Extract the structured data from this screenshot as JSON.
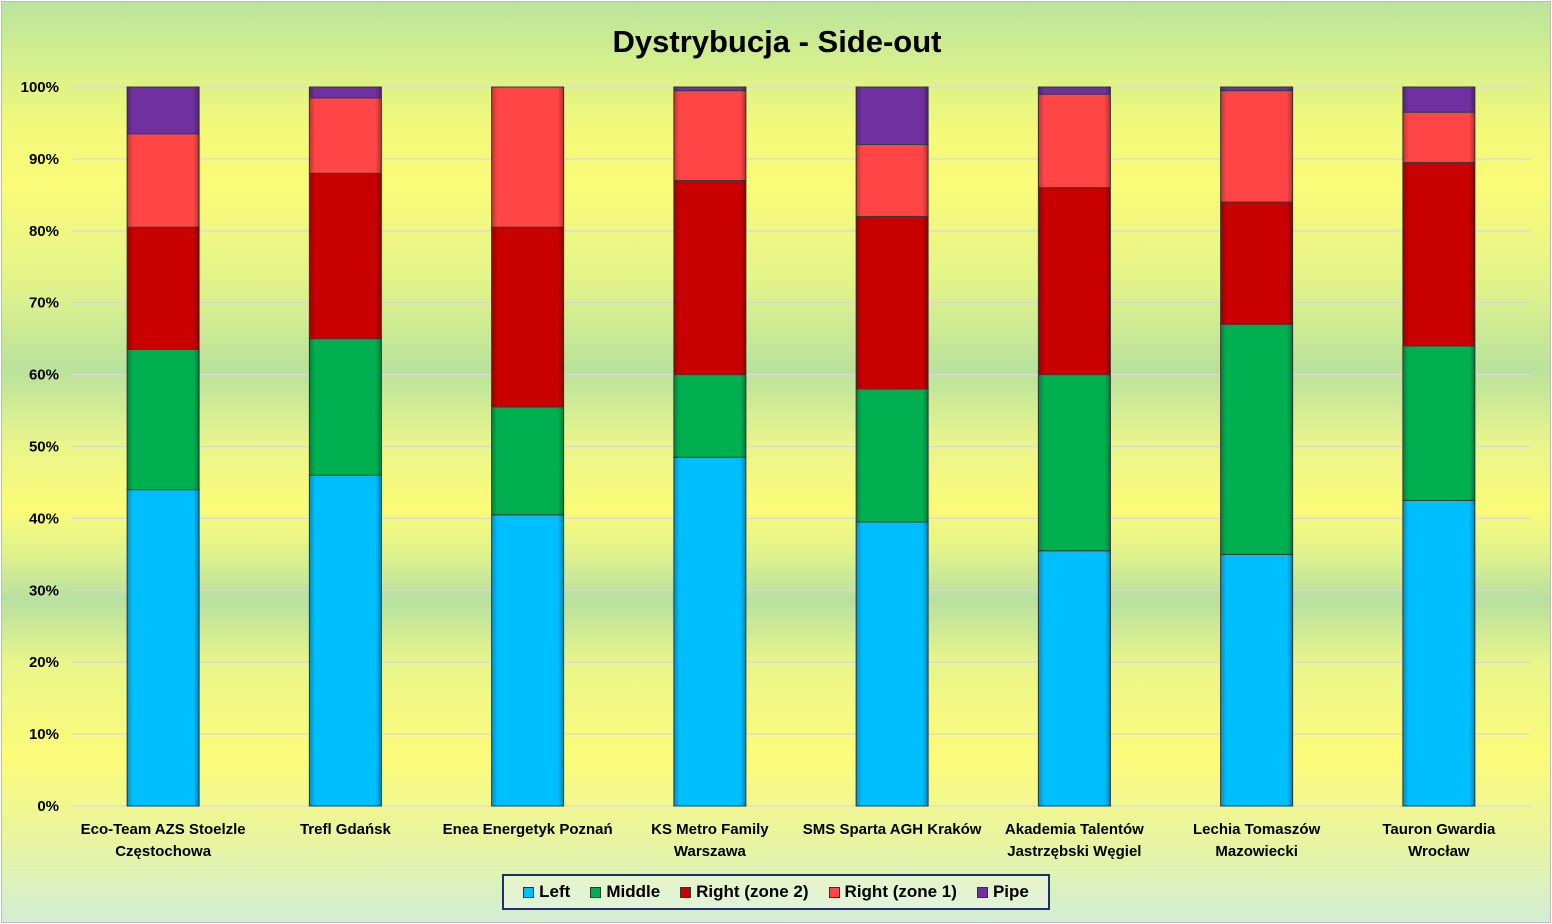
{
  "chart_data": {
    "type": "bar",
    "stacked": "percent",
    "title": "Dystrybucja - Side-out",
    "xlabel": "",
    "ylabel": "",
    "ylim": [
      0,
      100
    ],
    "yticks": [
      "0%",
      "10%",
      "20%",
      "30%",
      "40%",
      "50%",
      "60%",
      "70%",
      "80%",
      "90%",
      "100%"
    ],
    "grid": true,
    "legend_position": "bottom",
    "categories": [
      [
        "Eco-Team AZS Stoelzle",
        "Częstochowa"
      ],
      [
        "Trefl Gdańsk"
      ],
      [
        "Enea Energetyk Poznań"
      ],
      [
        "KS Metro Family",
        "Warszawa"
      ],
      [
        "SMS Sparta AGH Kraków"
      ],
      [
        "Akademia Talentów",
        "Jastrzębski Węgiel"
      ],
      [
        "Lechia Tomaszów",
        "Mazowiecki"
      ],
      [
        "Tauron Gwardia",
        "Wrocław"
      ]
    ],
    "series": [
      {
        "name": "Left",
        "color": "#00bfff",
        "values": [
          44,
          46,
          40.5,
          48.5,
          39.5,
          35.5,
          35,
          42.5
        ]
      },
      {
        "name": "Middle",
        "color": "#00b050",
        "values": [
          19.5,
          19,
          15,
          11.5,
          18.5,
          24.5,
          32,
          21.5
        ]
      },
      {
        "name": "Right (zone 2)",
        "color": "#c80000",
        "values": [
          17,
          23,
          25,
          27,
          24,
          26,
          17,
          25.5
        ]
      },
      {
        "name": "Right (zone 1)",
        "color": "#ff4545",
        "values": [
          13,
          10.5,
          19.5,
          12.5,
          10,
          13,
          15.5,
          7
        ]
      },
      {
        "name": "Pipe",
        "color": "#7030a0",
        "values": [
          6.5,
          1.5,
          0,
          0.5,
          8,
          1,
          0.5,
          3.5
        ]
      }
    ]
  }
}
